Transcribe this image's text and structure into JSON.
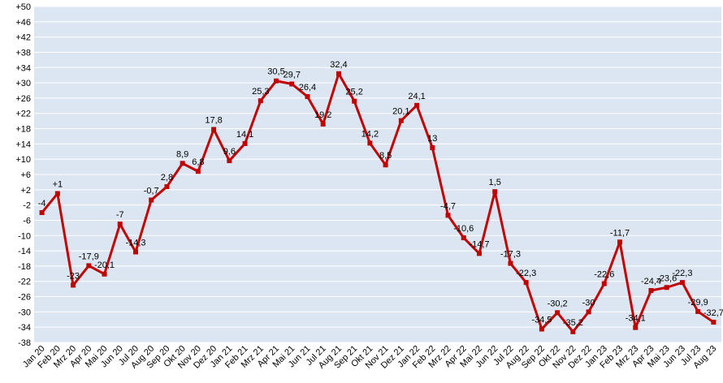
{
  "chart_data": {
    "type": "line",
    "categories": [
      "Jan 20",
      "Feb 20",
      "Mrz 20",
      "Apr 20",
      "Mai 20",
      "Jun 20",
      "Jul 20",
      "Aug 20",
      "Sep 20",
      "Okt 20",
      "Nov 20",
      "Dez 20",
      "Jan 21",
      "Feb 21",
      "Mrz 21",
      "Apr 21",
      "Mai 21",
      "Jun 21",
      "Jul 21",
      "Aug 21",
      "Sep 21",
      "Okt 21",
      "Nov 21",
      "Dez 21",
      "Jan 22",
      "Feb 22",
      "Mrz 22",
      "Apr 22",
      "Mai 22",
      "Jun 22",
      "Jul 22",
      "Aug 22",
      "Sep 22",
      "Okt 22",
      "Nov 22",
      "Dez 22",
      "Jan 23",
      "Feb 23",
      "Mrz 23",
      "Apr 23",
      "Mai 23",
      "Jun 23",
      "Jul 23",
      "Aug 23"
    ],
    "values": [
      -4,
      1,
      -23,
      -17.9,
      -20.1,
      -7,
      -14.3,
      -0.7,
      2.8,
      8.9,
      6.8,
      17.8,
      9.6,
      14.1,
      25.3,
      30.5,
      29.7,
      26.4,
      19.2,
      32.4,
      25.2,
      14.2,
      8.5,
      20.1,
      24.1,
      13,
      -4.7,
      -10.6,
      -14.7,
      1.5,
      -17.3,
      -22.3,
      -34.5,
      -30.2,
      -35.2,
      -30,
      -22.6,
      -11.7,
      -34.1,
      -24.4,
      -23.6,
      -22.3,
      -29.9,
      -32.7
    ],
    "value_labels": [
      "-4",
      "+1",
      "-23",
      "-17,9",
      "-20,1",
      "-7",
      "-14,3",
      "-0,7",
      "2,8",
      "8,9",
      "6,8",
      "17,8",
      "9,6",
      "14,1",
      "25,3",
      "30,5",
      "29,7",
      "26,4",
      "19,2",
      "32,4",
      "25,2",
      "14,2",
      "8,5",
      "20,1",
      "24,1",
      "13",
      "-4,7",
      "-10,6",
      "-14,7",
      "1,5",
      "-17,3",
      "-22,3",
      "-34,5",
      "-30,2",
      "-35,2",
      "-30",
      "-22,6",
      "-11,7",
      "-34,1",
      "-24,4",
      "-23,6",
      "-22,3",
      "-29,9",
      "-32,7"
    ],
    "color": "#c00000",
    "ylim": [
      -38,
      50
    ],
    "yticks": [
      {
        "value": 50,
        "label": "+50"
      },
      {
        "value": 46,
        "label": "+46"
      },
      {
        "value": 42,
        "label": "+42"
      },
      {
        "value": 38,
        "label": "+38"
      },
      {
        "value": 34,
        "label": "+34"
      },
      {
        "value": 30,
        "label": "+30"
      },
      {
        "value": 26,
        "label": "+26"
      },
      {
        "value": 22,
        "label": "+22"
      },
      {
        "value": 18,
        "label": "+18"
      },
      {
        "value": 14,
        "label": "+14"
      },
      {
        "value": 10,
        "label": "+10"
      },
      {
        "value": 6,
        "label": "+6"
      },
      {
        "value": 2,
        "label": "+2"
      },
      -2,
      -6,
      -10,
      -14,
      -18,
      -22,
      -26,
      -30,
      -34,
      -38
    ],
    "grid": true
  }
}
